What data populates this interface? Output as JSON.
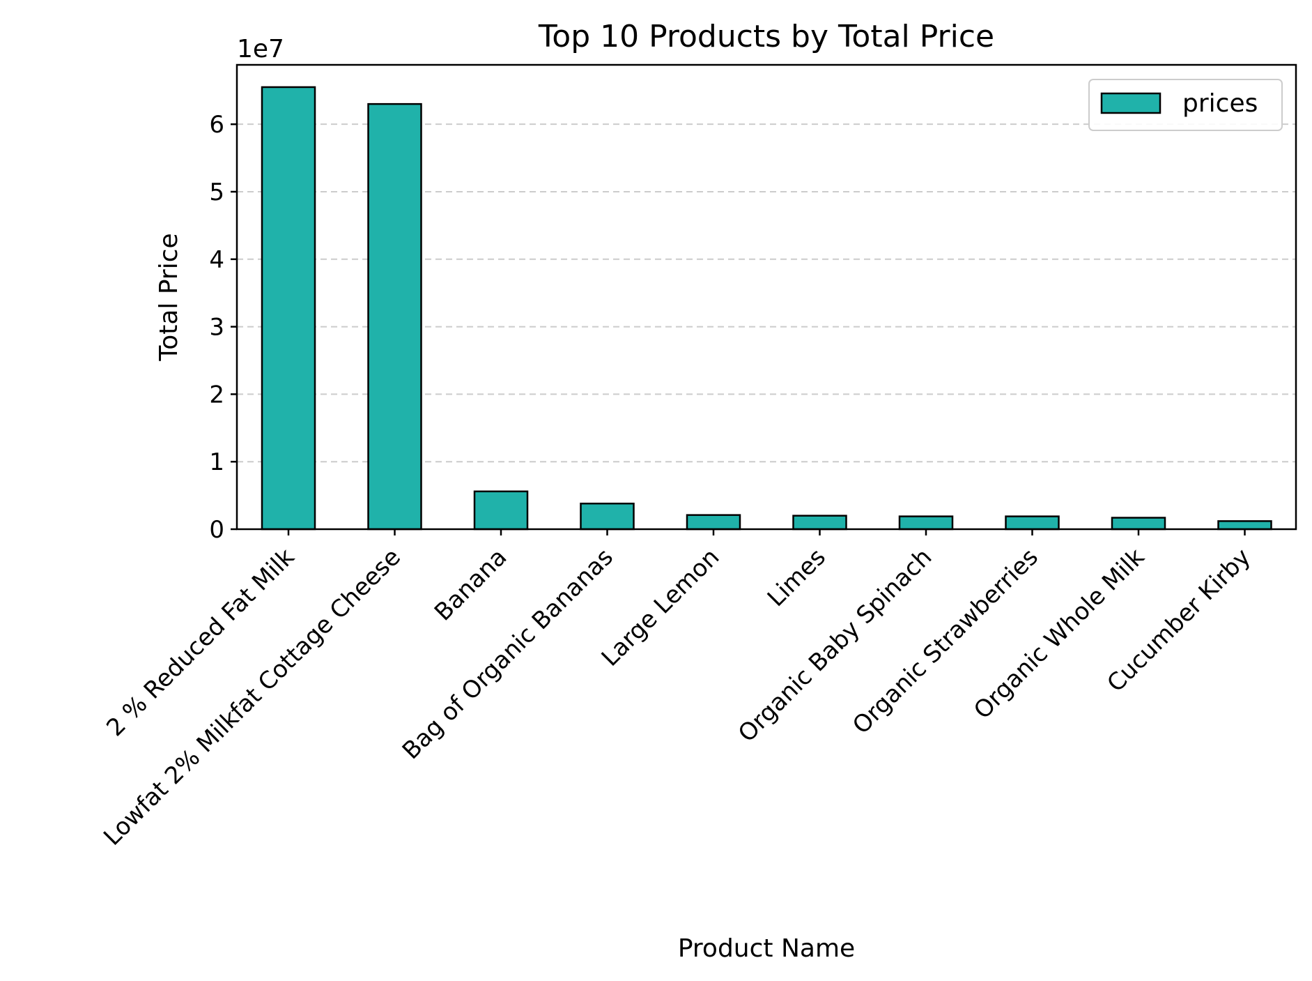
{
  "chart_data": {
    "type": "bar",
    "title": "Top 10 Products by Total Price",
    "xlabel": "Product Name",
    "ylabel": "Total Price",
    "y_offset_label": "1e7",
    "categories": [
      "2 % Reduced Fat  Milk",
      "Lowfat 2% Milkfat Cottage Cheese",
      "Banana",
      "Bag of Organic Bananas",
      "Large Lemon",
      "Limes",
      "Organic Baby Spinach",
      "Organic Strawberries",
      "Organic Whole Milk",
      "Cucumber Kirby"
    ],
    "series": [
      {
        "name": "prices",
        "color": "#20b2aa",
        "values": [
          65500000,
          63000000,
          5600000,
          3800000,
          2100000,
          2000000,
          1900000,
          1900000,
          1700000,
          1200000
        ]
      }
    ],
    "y_ticks": [
      0,
      10000000,
      20000000,
      30000000,
      40000000,
      50000000,
      60000000
    ],
    "y_tick_labels": [
      "0",
      "1",
      "2",
      "3",
      "4",
      "5",
      "6"
    ],
    "ylim": [
      0,
      68800000
    ],
    "grid": "y-dashed",
    "legend_position": "upper right",
    "colors": {
      "bar_fill": "#20b2aa",
      "bar_edge": "#000000",
      "grid": "#cccccc",
      "axes": "#000000"
    }
  }
}
